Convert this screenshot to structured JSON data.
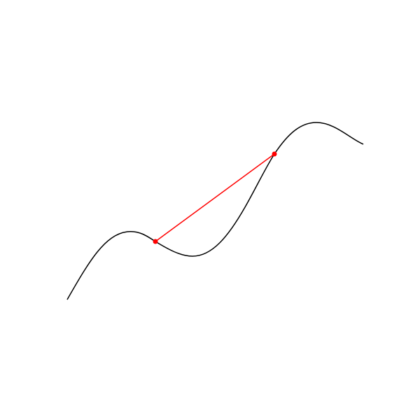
{
  "diagram": {
    "type": "curve-with-secant",
    "colors": {
      "background": "#ffffff",
      "curve": "#000000",
      "secant": "#ff0000",
      "points": "#ff0000"
    }
  }
}
